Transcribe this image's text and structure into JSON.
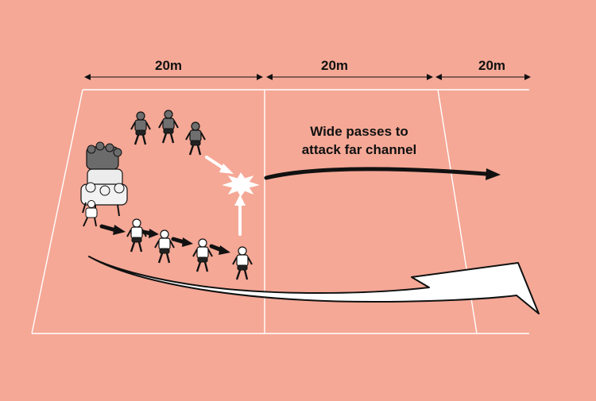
{
  "background_color": "#f5a896",
  "field_line_color": "#ffffff",
  "arrow_dark_color": "#111111",
  "arrow_light_color": "#ffffff",
  "measurements": [
    {
      "label": "20m"
    },
    {
      "label": "20m"
    },
    {
      "label": "20m"
    }
  ],
  "caption": {
    "line1": "Wide passes to",
    "line2": "attack far channel"
  },
  "icons": {
    "scrum": "scrum-icon",
    "defender": "defender-player-icon",
    "attacker": "attacker-player-icon",
    "contact": "contact-burst-icon"
  },
  "players": {
    "defenders_count": 4,
    "attackers_count": 5
  }
}
